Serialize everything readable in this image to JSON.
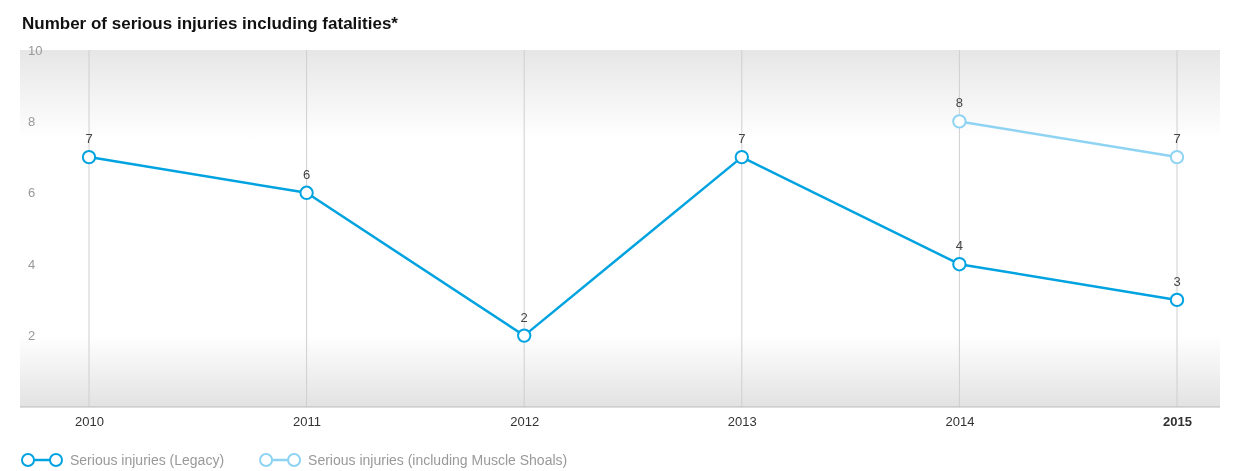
{
  "chart_data": {
    "type": "line",
    "title": "Number of serious injuries including fatalities*",
    "categories": [
      "2010",
      "2011",
      "2012",
      "2013",
      "2014",
      "2015"
    ],
    "series": [
      {
        "name": "Serious injuries (Legacy)",
        "color": "#00a3e0",
        "values": [
          7,
          6,
          2,
          7,
          4,
          3
        ]
      },
      {
        "name": "Serious injuries (including Muscle Shoals)",
        "color": "#8fd3f3",
        "values": [
          null,
          null,
          null,
          null,
          8,
          7
        ]
      }
    ],
    "ylim": [
      0,
      10
    ],
    "yticks": [
      2,
      4,
      6,
      8,
      10
    ],
    "grid": "x",
    "legend": "bottom left",
    "marker": "circle",
    "line_style": "solid",
    "data_labels": true
  }
}
